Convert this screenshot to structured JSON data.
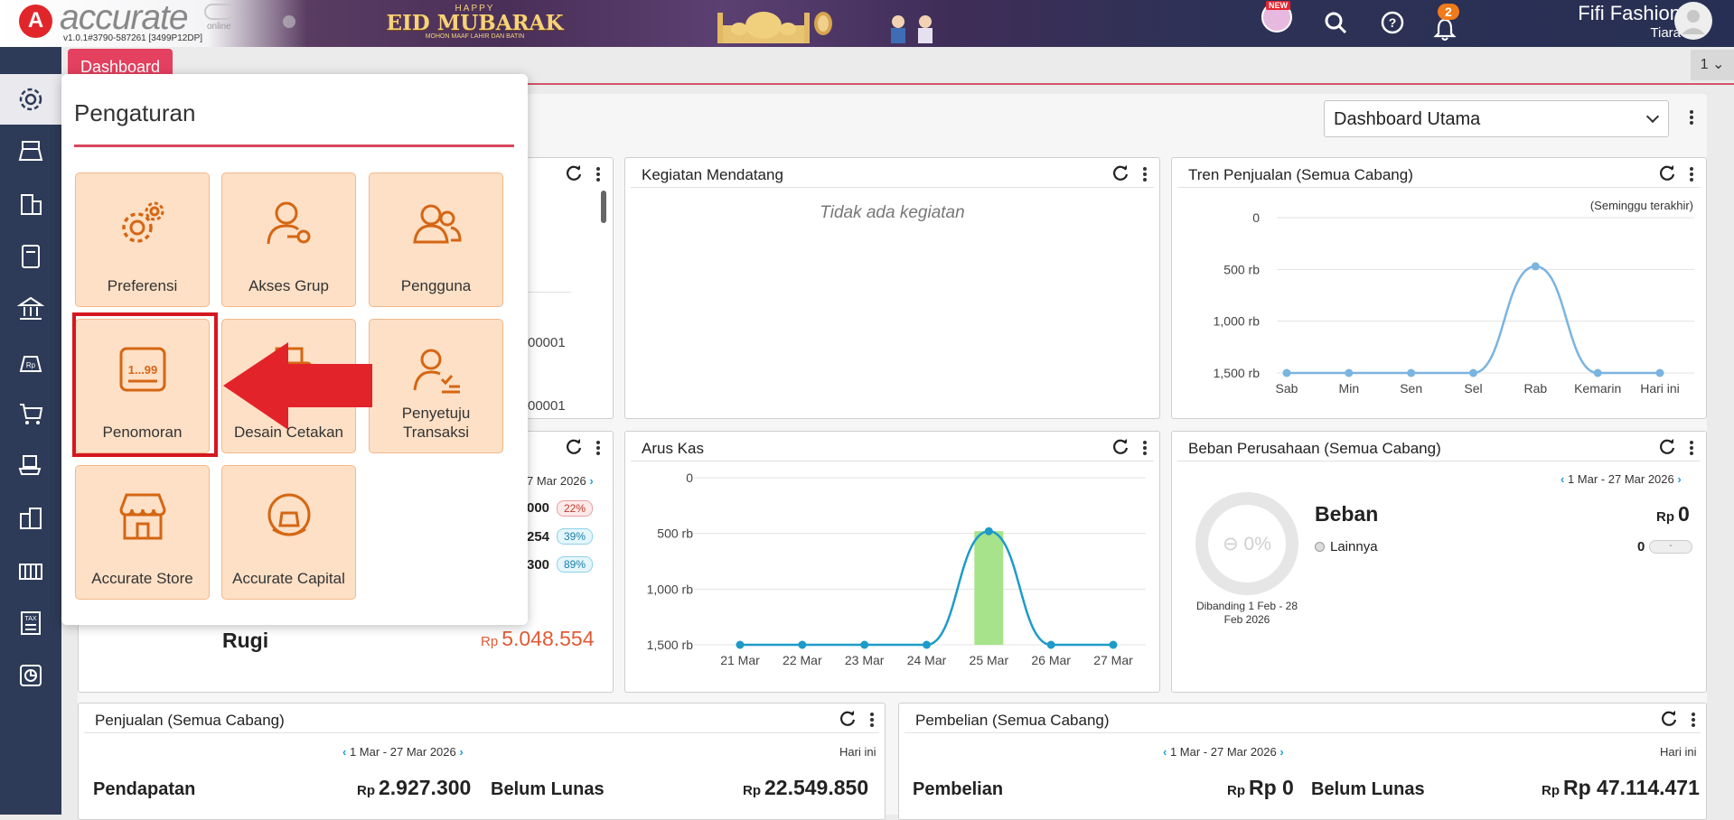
{
  "app": {
    "logo_letter": "A",
    "logo_text": "accurate",
    "logo_online": "online",
    "version": "v1.0.1#3790-587261 [3499P12DP]"
  },
  "banner": {
    "happy": "HAPPY",
    "title": "EID MUBARAK",
    "subtitle": "MOHON MAAF LAHIR DAN BATIN"
  },
  "topbar": {
    "new_badge": "NEW",
    "notif_count": "2",
    "user_name": "Fifi Fashion",
    "user_sub": "Tiara"
  },
  "tabs": {
    "dashboard": "Dashboard",
    "right_count": "1"
  },
  "dashboard_select": {
    "value": "Dashboard Utama"
  },
  "settings_panel": {
    "title": "Pengaturan",
    "tiles": [
      {
        "label": "Preferensi",
        "icon": "gears-icon"
      },
      {
        "label": "Akses Grup",
        "icon": "user-key-icon"
      },
      {
        "label": "Pengguna",
        "icon": "users-icon"
      },
      {
        "label": "Penomoran",
        "icon": "numbering-icon",
        "number_text": "1...99"
      },
      {
        "label": "Desain Cetakan",
        "icon": "print-design-icon"
      },
      {
        "label": "Penyetuju Transaksi",
        "icon": "approver-icon"
      },
      {
        "label": "Accurate Store",
        "icon": "store-icon"
      },
      {
        "label": "Accurate Capital",
        "icon": "capital-icon"
      }
    ]
  },
  "card_left_top": {
    "partial_1": "00001",
    "partial_2": "00001"
  },
  "card_left_mid": {
    "date_partial": "7 Mar 2026",
    "rows": [
      {
        "val": "000",
        "pct": "22%"
      },
      {
        "val": "254",
        "pct": "39%"
      },
      {
        "val": "300",
        "pct": "89%"
      }
    ],
    "footer_label": "Rugi",
    "footer_currency": "Rp",
    "footer_value": "5.048.554"
  },
  "kegiatan": {
    "title": "Kegiatan Mendatang",
    "empty": "Tidak ada kegiatan"
  },
  "tren": {
    "title": "Tren Penjualan (Semua Cabang)",
    "period": "(Seminggu terakhir)"
  },
  "arus": {
    "title": "Arus Kas"
  },
  "beban": {
    "title": "Beban Perusahaan (Semua Cabang)",
    "date_range": "1 Mar - 27 Mar 2026",
    "donut_pct": "0%",
    "compare_1": "Dibanding 1 Feb - 28",
    "compare_2": "Feb 2026",
    "label": "Beban",
    "currency": "Rp",
    "value": "0",
    "item_label": "Lainnya",
    "item_value": "0",
    "item_bar": "-"
  },
  "penjualan": {
    "title": "Penjualan (Semua Cabang)",
    "date_range": "1 Mar - 27 Mar 2026",
    "right": "Hari ini",
    "left_label": "Pendapatan",
    "left_currency": "Rp",
    "left_value": "2.927.300",
    "mid_label": "Belum Lunas",
    "right_currency": "Rp",
    "right_value": "22.549.850"
  },
  "pembelian": {
    "title": "Pembelian (Semua Cabang)",
    "date_range": "1 Mar - 27 Mar 2026",
    "right": "Hari ini",
    "left_label": "Pembelian",
    "left_currency": "Rp",
    "left_value": "Rp 0",
    "mid_label": "Belum Lunas",
    "right_currency": "Rp",
    "right_value": "Rp 47.114.471"
  },
  "chart_data": [
    {
      "type": "line",
      "title": "Tren Penjualan (Semua Cabang)",
      "categories": [
        "Sab",
        "Min",
        "Sen",
        "Sel",
        "Rab",
        "Kemarin",
        "Hari ini"
      ],
      "ylim": [
        0,
        1500
      ],
      "y_ticks": [
        "1,500 rb",
        "1,000 rb",
        "500 rb",
        "0"
      ],
      "series": [
        {
          "values": [
            0,
            0,
            0,
            0,
            1030,
            0,
            0
          ]
        }
      ],
      "color": "#7ab4e0"
    },
    {
      "type": "line",
      "title": "Arus Kas",
      "categories": [
        "21 Mar",
        "22 Mar",
        "23 Mar",
        "24 Mar",
        "25 Mar",
        "26 Mar",
        "27 Mar"
      ],
      "ylim": [
        0,
        1500
      ],
      "y_ticks": [
        "1,500 rb",
        "1,000 rb",
        "500 rb",
        "0"
      ],
      "bar_values": [
        0,
        0,
        0,
        0,
        1020,
        0,
        0
      ],
      "series": [
        {
          "values": [
            0,
            0,
            0,
            0,
            1020,
            0,
            0
          ]
        }
      ],
      "bar_color": "#a6e38a",
      "line_color": "#1d9bc8"
    }
  ]
}
